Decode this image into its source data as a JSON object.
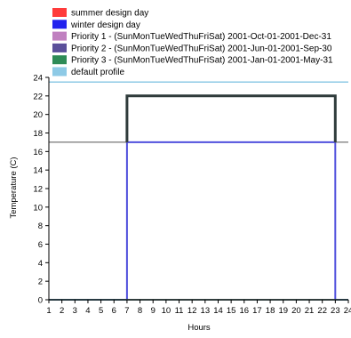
{
  "chart_data": {
    "type": "line",
    "xlabel": "Hours",
    "ylabel": "Temperature (C)",
    "xlim": [
      1,
      24
    ],
    "ylim": [
      0,
      24
    ],
    "x_ticks": [
      "1",
      "2",
      "3",
      "4",
      "5",
      "6",
      "7",
      "8",
      "9",
      "10",
      "11",
      "12",
      "13",
      "14",
      "15",
      "16",
      "17",
      "18",
      "19",
      "20",
      "21",
      "22",
      "23",
      "24"
    ],
    "y_ticks": [
      "0",
      "2",
      "4",
      "6",
      "8",
      "10",
      "12",
      "14",
      "16",
      "18",
      "20",
      "22",
      "24"
    ],
    "grid": false,
    "legend_position": "top-left",
    "legend": [
      {
        "label": "summer design day",
        "color": "#ff3b3b"
      },
      {
        "label": "winter design day",
        "color": "#2222ee"
      },
      {
        "label": "Priority 1 - (SunMonTueWedThuFriSat) 2001-Oct-01-2001-Dec-31",
        "color": "#c080c0"
      },
      {
        "label": "Priority 2 - (SunMonTueWedThuFriSat) 2001-Jun-01-2001-Sep-30",
        "color": "#5a4f9a"
      },
      {
        "label": "Priority 3 - (SunMonTueWedThuFriSat) 2001-Jan-01-2001-May-31",
        "color": "#2e8b57"
      },
      {
        "label": "default profile",
        "color": "#8ecae6"
      }
    ],
    "series": [
      {
        "name": "summer design day",
        "color": "#ff3b3b",
        "width": 1.5,
        "points": [
          [
            1,
            0
          ],
          [
            24,
            0
          ]
        ]
      },
      {
        "name": "winter design day",
        "color": "#5050dd",
        "width": 2,
        "points": [
          [
            1,
            0
          ],
          [
            7,
            0
          ],
          [
            7,
            17
          ],
          [
            23,
            17
          ],
          [
            23,
            0
          ],
          [
            24,
            0
          ]
        ]
      },
      {
        "name": "Priority 1 - (SunMonTueWedThuFriSat) 2001-Oct-01-2001-Dec-31",
        "color": "#c080c0",
        "width": 1.5,
        "points": [
          [
            1,
            0
          ],
          [
            24,
            0
          ]
        ]
      },
      {
        "name": "Priority 2 - (SunMonTueWedThuFriSat) 2001-Jun-01-2001-Sep-30",
        "color": "#5a4f9a",
        "width": 1.5,
        "points": [
          [
            1,
            0
          ],
          [
            24,
            0
          ]
        ]
      },
      {
        "name": "Priority 3 - (SunMonTueWedThuFriSat) 2001-Jan-01-2001-May-31",
        "color": "#2e8b57",
        "width": 1.5,
        "points": [
          [
            1,
            0
          ],
          [
            24,
            0
          ]
        ]
      },
      {
        "name": "default profile",
        "color": "#8ecae6",
        "width": 1.5,
        "points": [
          [
            1,
            23.5
          ],
          [
            24,
            23.5
          ]
        ]
      },
      {
        "name": "",
        "color": "#555555",
        "width": 1,
        "points": [
          [
            1,
            17
          ],
          [
            7,
            17
          ],
          [
            7,
            22
          ],
          [
            23,
            22
          ],
          [
            23,
            17
          ],
          [
            24,
            17
          ]
        ]
      },
      {
        "name": "",
        "color": "#2f3b3b",
        "width": 3,
        "points": [
          [
            7,
            17
          ],
          [
            7,
            22
          ],
          [
            23,
            22
          ],
          [
            23,
            17
          ]
        ]
      }
    ]
  }
}
